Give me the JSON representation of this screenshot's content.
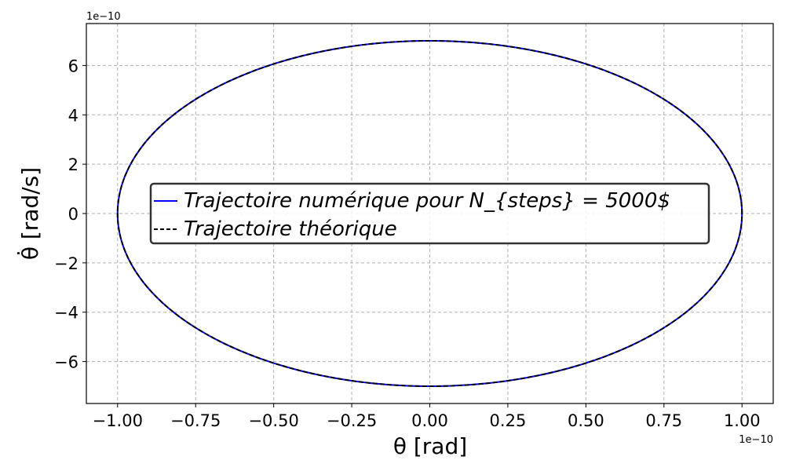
{
  "chart_data": {
    "type": "line",
    "xlabel": "θ [rad]",
    "ylabel": "θ̇ [rad/s]",
    "x_exponent_label": "1e−10",
    "y_exponent_label": "1e−10",
    "xlim": [
      -1.1,
      1.1
    ],
    "ylim": [
      -7.7,
      7.7
    ],
    "x_ticks": [
      -1.0,
      -0.75,
      -0.5,
      -0.25,
      0.0,
      0.25,
      0.5,
      0.75,
      1.0
    ],
    "x_tick_labels": [
      "−1.00",
      "−0.75",
      "−0.50",
      "−0.25",
      "0.00",
      "0.25",
      "0.50",
      "0.75",
      "1.00"
    ],
    "y_ticks": [
      -6,
      -4,
      -2,
      0,
      2,
      4,
      6
    ],
    "y_tick_labels": [
      "−6",
      "−4",
      "−2",
      "0",
      "2",
      "4",
      "6"
    ],
    "grid": true,
    "legend_position": "center",
    "series": [
      {
        "name": "Trajectoire numérique pour N_{steps} = 5000$",
        "style": "solid",
        "color": "#0000ff",
        "shape": "ellipse",
        "x_amplitude": 1.0,
        "y_amplitude": 7.0
      },
      {
        "name": "Trajectoire théorique",
        "style": "dashed",
        "color": "#000000",
        "shape": "ellipse",
        "x_amplitude": 1.0,
        "y_amplitude": 7.0
      }
    ]
  }
}
